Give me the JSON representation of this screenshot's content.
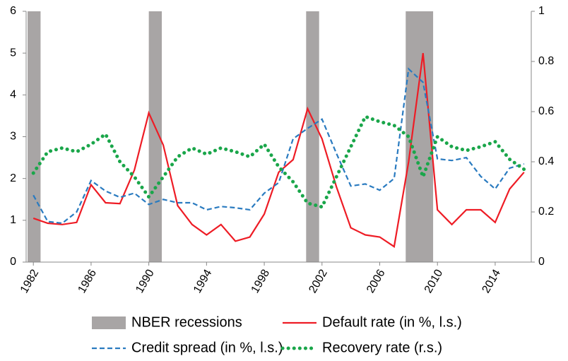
{
  "chart_data": {
    "type": "line",
    "x": [
      1982,
      1983,
      1984,
      1985,
      1986,
      1987,
      1988,
      1989,
      1990,
      1991,
      1992,
      1993,
      1994,
      1995,
      1996,
      1997,
      1998,
      1999,
      2000,
      2001,
      2002,
      2003,
      2004,
      2005,
      2006,
      2007,
      2008,
      2009,
      2010,
      2011,
      2012,
      2013,
      2014,
      2015,
      2016
    ],
    "xlim": [
      1981.5,
      2016.5
    ],
    "xticks": [
      1982,
      1986,
      1990,
      1994,
      1998,
      2002,
      2006,
      2010,
      2014
    ],
    "ylim": [
      0,
      6
    ],
    "yticks": [
      0,
      1,
      2,
      3,
      4,
      5,
      6
    ],
    "y2lim": [
      0,
      1
    ],
    "y2ticks": [
      0,
      0.2,
      0.4,
      0.6,
      0.8,
      1
    ],
    "recessions": {
      "name": "NBER recessions",
      "color": "#a8a5a5",
      "spans": [
        [
          1981.6,
          1982.5
        ],
        [
          1990.0,
          1990.9
        ],
        [
          2000.9,
          2001.8
        ],
        [
          2007.8,
          2009.7
        ]
      ]
    },
    "series": [
      {
        "name": "Default rate (in %, l.s.)",
        "color": "#ee1c25",
        "style": "solid",
        "values": [
          1.05,
          0.93,
          0.9,
          0.95,
          1.85,
          1.42,
          1.4,
          2.2,
          3.57,
          2.8,
          1.35,
          0.9,
          0.65,
          0.9,
          0.5,
          0.6,
          1.15,
          2.15,
          2.45,
          3.67,
          2.95,
          1.8,
          0.82,
          0.65,
          0.6,
          0.37,
          2.4,
          5.0,
          1.25,
          0.9,
          1.25,
          1.25,
          0.95,
          1.75,
          2.15
        ]
      },
      {
        "name": "Credit spread (in %, l.s.)",
        "color": "#2a7bc0",
        "style": "dashed",
        "values": [
          1.6,
          0.97,
          0.93,
          1.2,
          1.95,
          1.7,
          1.55,
          1.65,
          1.38,
          1.5,
          1.42,
          1.42,
          1.25,
          1.33,
          1.3,
          1.25,
          1.65,
          1.9,
          2.95,
          3.2,
          3.42,
          2.6,
          1.82,
          1.87,
          1.72,
          2.0,
          4.62,
          4.3,
          2.47,
          2.43,
          2.5,
          2.05,
          1.75,
          2.25,
          2.35
        ]
      },
      {
        "name": "Recovery rate (r.s.)",
        "color": "#1aa64a",
        "style": "dotted",
        "axis": "y2",
        "values": [
          0.355,
          0.44,
          0.455,
          0.44,
          0.47,
          0.51,
          0.4,
          0.34,
          0.26,
          0.34,
          0.42,
          0.455,
          0.43,
          0.455,
          0.44,
          0.42,
          0.47,
          0.38,
          0.32,
          0.235,
          0.22,
          0.34,
          0.46,
          0.58,
          0.56,
          0.545,
          0.5,
          0.34,
          0.5,
          0.46,
          0.445,
          0.46,
          0.48,
          0.41,
          0.37
        ]
      }
    ]
  }
}
